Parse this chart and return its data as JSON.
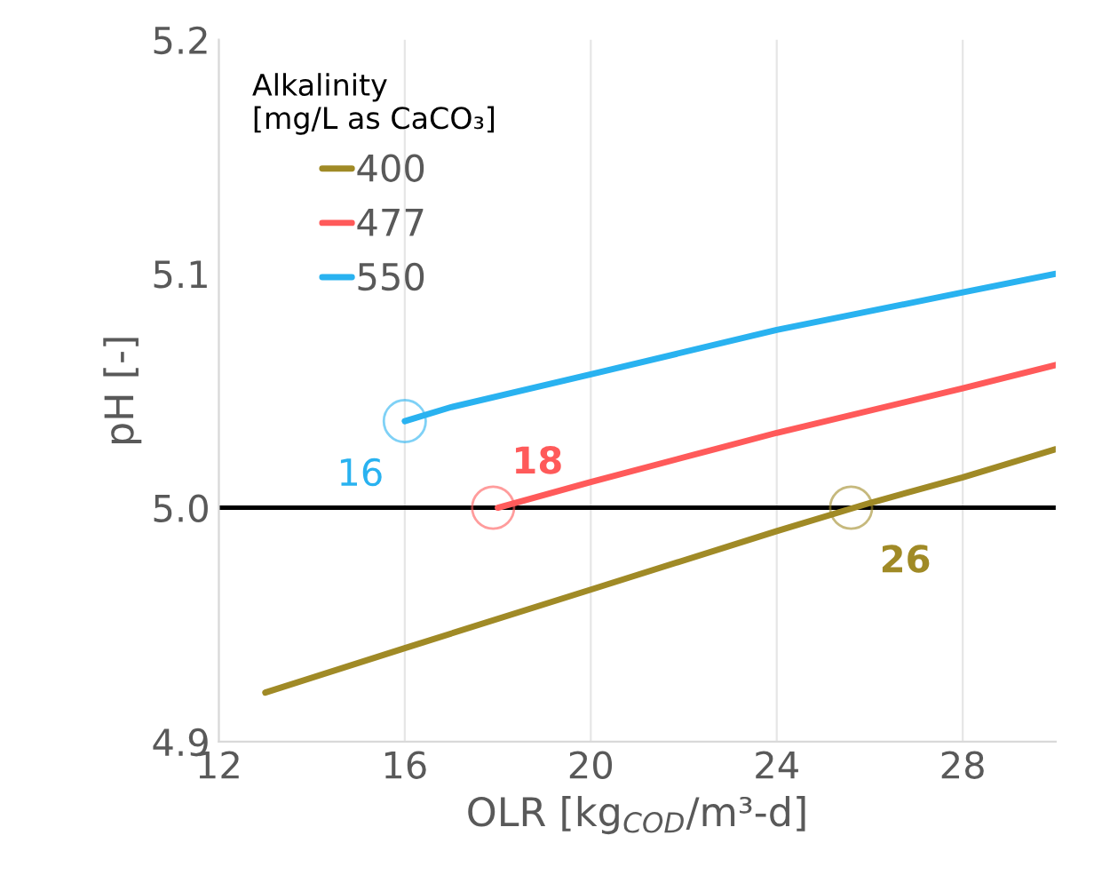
{
  "chart_data": {
    "type": "line",
    "xlabel": "OLR [kg$_{COD}$/m³-d]",
    "ylabel": "pH [-]",
    "legend_title": "Alkalinity\n[mg/L as CaCO₃]",
    "series": [
      {
        "name": "400",
        "color": "#a08a26",
        "x": [
          13,
          16,
          20,
          24,
          26,
          28,
          30
        ],
        "values": [
          4.921,
          4.94,
          4.965,
          4.99,
          5.002,
          5.013,
          5.025
        ]
      },
      {
        "name": "477",
        "color": "#ff5a5a",
        "x": [
          18,
          20,
          24,
          28,
          30
        ],
        "values": [
          5.0,
          5.011,
          5.032,
          5.051,
          5.061
        ]
      },
      {
        "name": "550",
        "color": "#29b2f0",
        "x": [
          16,
          17,
          20,
          24,
          28,
          30
        ],
        "values": [
          5.037,
          5.043,
          5.057,
          5.076,
          5.092,
          5.1
        ]
      }
    ],
    "annotations": [
      {
        "text": "16",
        "x": 16,
        "y": 5.037
      },
      {
        "text": "18",
        "x": 17.9,
        "y": 5.0
      },
      {
        "text": "26",
        "x": 25.6,
        "y": 5.0
      }
    ],
    "ref_lines": [
      {
        "axis": "y",
        "value": 5.0,
        "color": "#000000"
      }
    ],
    "xlim": [
      12,
      30
    ],
    "xticks": [
      12,
      16,
      20,
      24,
      28
    ],
    "ylim": [
      4.9,
      5.2
    ],
    "yticks": [
      {
        "value": 4.9,
        "label": "4.9"
      },
      {
        "value": 5.0,
        "label": "5.0"
      },
      {
        "value": 5.1,
        "label": "5.1"
      },
      {
        "value": 5.2,
        "label": "5.2"
      }
    ],
    "grid": "x",
    "legend": "top left",
    "marker": "none",
    "line_style": "solid"
  }
}
